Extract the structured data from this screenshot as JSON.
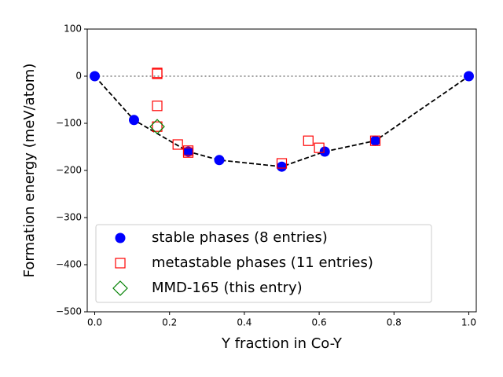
{
  "chart_data": {
    "type": "scatter",
    "xlabel": "Y fraction in Co-Y",
    "ylabel": "Formation energy (meV/atom)",
    "xlim": [
      -0.02,
      1.02
    ],
    "ylim": [
      -500,
      100
    ],
    "xticks": [
      {
        "value": 0,
        "label": "0.0"
      },
      {
        "value": 0.2,
        "label": "0.2"
      },
      {
        "value": 0.4,
        "label": "0.4"
      },
      {
        "value": 0.6,
        "label": "0.6"
      },
      {
        "value": 0.8,
        "label": "0.8"
      },
      {
        "value": 1,
        "label": "1.0"
      }
    ],
    "yticks": [
      {
        "value": -500,
        "label": "−500"
      },
      {
        "value": -400,
        "label": "−400"
      },
      {
        "value": -300,
        "label": "−300"
      },
      {
        "value": -200,
        "label": "−200"
      },
      {
        "value": -100,
        "label": "−100"
      },
      0,
      100
    ],
    "hline": {
      "y": 0,
      "color": "#808080",
      "style": "dotted"
    },
    "legend": "lower left",
    "series": [
      {
        "name": "stable phases (8 entries)",
        "color": "#0000ff",
        "marker": "circle",
        "hull_line": true,
        "x": [
          0,
          0.105,
          0.25,
          0.333,
          0.5,
          0.615,
          0.75,
          1
        ],
        "values": [
          0,
          -93,
          -160,
          -178,
          -192,
          -160,
          -137,
          0
        ]
      },
      {
        "name": "metastable phases (11 entries)",
        "color": "#ff0000",
        "marker": "square",
        "x": [
          0.167,
          0.167,
          0.167,
          0.167,
          0.222,
          0.25,
          0.25,
          0.5,
          0.571,
          0.6,
          0.75
        ],
        "values": [
          7,
          5,
          -63,
          -107,
          -145,
          -158,
          -162,
          -185,
          -137,
          -152,
          -137
        ]
      },
      {
        "name": "MMD-165 (this entry)",
        "color": "#008000",
        "marker": "diamond",
        "x": [
          0.167
        ],
        "values": [
          -107
        ]
      }
    ]
  }
}
